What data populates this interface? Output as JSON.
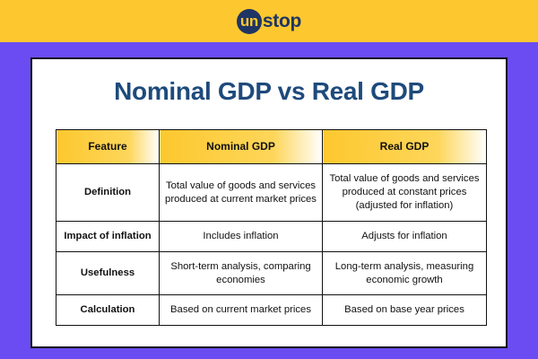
{
  "brand": {
    "logo_badge": "un",
    "logo_rest": "stop"
  },
  "title": "Nominal GDP vs Real GDP",
  "table": {
    "headers": [
      "Feature",
      "Nominal GDP",
      "Real GDP"
    ],
    "rows": [
      [
        "Definition",
        "Total value of goods and services produced at current market prices",
        "Total value of goods and services produced at constant prices (adjusted for inflation)"
      ],
      [
        "Impact of inflation",
        "Includes inflation",
        "Adjusts for inflation"
      ],
      [
        "Usefulness",
        "Short-term analysis, comparing economies",
        "Long-term analysis, measuring economic growth"
      ],
      [
        "Calculation",
        "Based on current market prices",
        "Based on base year prices"
      ]
    ]
  },
  "colors": {
    "accent": "#fdc82f",
    "background": "#6a4cf2",
    "title": "#1e4a7c",
    "brand_navy": "#1f3563"
  }
}
